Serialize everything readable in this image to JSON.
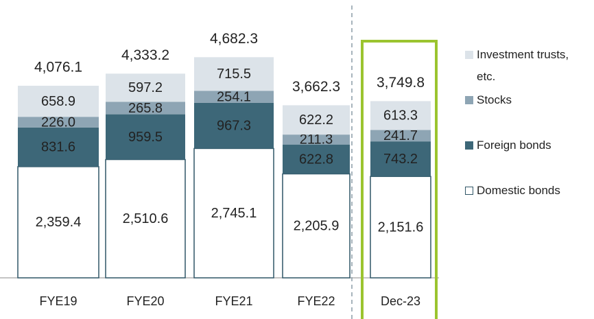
{
  "chart_data": {
    "type": "stacked-bar",
    "categories": [
      "FYE19",
      "FYE20",
      "FYE21",
      "FYE22",
      "Dec-23"
    ],
    "series": [
      {
        "name": "Domestic bonds",
        "color": "#ffffff",
        "values": [
          2359.4,
          2510.6,
          2745.1,
          2205.9,
          2151.6
        ],
        "value_labels": [
          "2,359.4",
          "2,510.6",
          "2,745.1",
          "2,205.9",
          "2,151.6"
        ]
      },
      {
        "name": "Foreign bonds",
        "color": "#3d6778",
        "values": [
          831.6,
          959.5,
          967.3,
          622.8,
          743.2
        ],
        "value_labels": [
          "831.6",
          "959.5",
          "967.3",
          "622.8",
          "743.2"
        ]
      },
      {
        "name": "Stocks",
        "color": "#8ea5b4",
        "values": [
          226.0,
          265.8,
          254.1,
          211.3,
          241.7
        ],
        "value_labels": [
          "226.0",
          "265.8",
          "254.1",
          "211.3",
          "241.7"
        ]
      },
      {
        "name": "Investment trusts, etc.",
        "color": "#dce3e9",
        "values": [
          658.9,
          597.2,
          715.5,
          622.2,
          613.3
        ],
        "value_labels": [
          "658.9",
          "597.2",
          "715.5",
          "622.2",
          "613.3"
        ]
      }
    ],
    "totals": [
      4076.1,
      4333.2,
      4682.3,
      3662.3,
      3749.8
    ],
    "total_labels": [
      "4,076.1",
      "4,333.2",
      "4,682.3",
      "3,662.3",
      "3,749.8"
    ]
  }
}
